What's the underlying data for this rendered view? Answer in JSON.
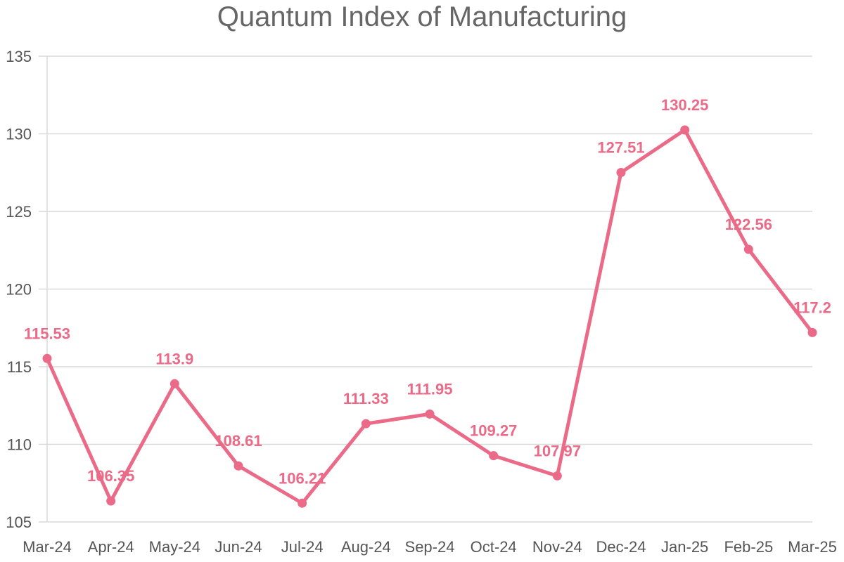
{
  "chart_data": {
    "type": "line",
    "title": "Quantum Index of Manufacturing",
    "xlabel": "",
    "ylabel": "",
    "categories": [
      "Mar-24",
      "Apr-24",
      "May-24",
      "Jun-24",
      "Jul-24",
      "Aug-24",
      "Sep-24",
      "Oct-24",
      "Nov-24",
      "Dec-24",
      "Jan-25",
      "Feb-25",
      "Mar-25"
    ],
    "series": [
      {
        "values": [
          115.53,
          106.35,
          113.9,
          108.61,
          106.21,
          111.33,
          111.95,
          109.27,
          107.97,
          127.51,
          130.25,
          122.56,
          117.2
        ],
        "data_labels": [
          "115.53",
          "106.35",
          "113.9",
          "108.61",
          "106.21",
          "111.33",
          "111.95",
          "109.27",
          "107.97",
          "127.51",
          "130.25",
          "122.56",
          "117.2"
        ],
        "color": "#eb6a88"
      }
    ],
    "ylim": [
      105,
      135
    ],
    "yticks": [
      "105",
      "110",
      "115",
      "120",
      "125",
      "130",
      "135"
    ],
    "grid": true,
    "legend": "none"
  }
}
